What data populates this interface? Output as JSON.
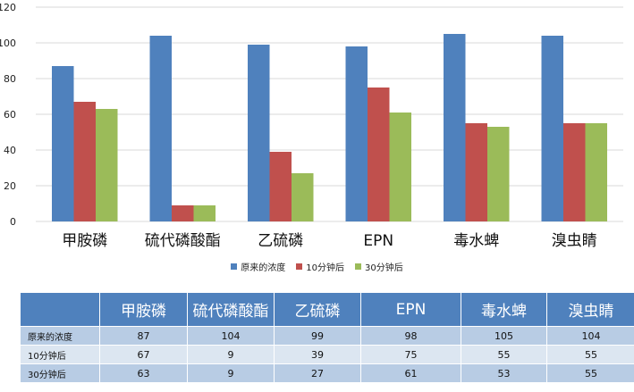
{
  "chart_data": {
    "type": "bar",
    "categories": [
      "甲胺磷",
      "硫代磷酸酯",
      "乙硫磷",
      "EPN",
      "毒水蜱",
      "溴虫睛"
    ],
    "series": [
      {
        "name": "原来的浓度",
        "color": "#4f81bd",
        "values": [
          87,
          104,
          99,
          98,
          105,
          104
        ]
      },
      {
        "name": "10分钟后",
        "color": "#c0504d",
        "values": [
          67,
          9,
          39,
          75,
          55,
          55
        ]
      },
      {
        "name": "30分钟后",
        "color": "#9bbb59",
        "values": [
          63,
          9,
          27,
          61,
          53,
          55
        ]
      }
    ],
    "ylim": [
      0,
      120
    ],
    "yticks": [
      0,
      20,
      40,
      60,
      80,
      100,
      120
    ],
    "grid": true,
    "legend_position": "bottom"
  },
  "table": {
    "header_color": "#4f81bd",
    "row_colors": [
      "#b8cce4",
      "#dce6f1"
    ]
  }
}
